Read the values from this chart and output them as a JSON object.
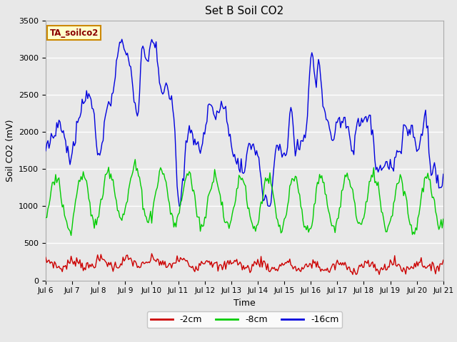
{
  "title": "Set B Soil CO2",
  "xlabel": "Time",
  "ylabel": "Soil CO2 (mV)",
  "xlim": [
    0,
    360
  ],
  "ylim": [
    0,
    3500
  ],
  "yticks": [
    0,
    500,
    1000,
    1500,
    2000,
    2500,
    3000,
    3500
  ],
  "xtick_positions": [
    0,
    24,
    48,
    72,
    96,
    120,
    144,
    168,
    192,
    216,
    240,
    264,
    288,
    312,
    336,
    360
  ],
  "xtick_labels": [
    "Jul 6",
    "Jul 7",
    "Jul 8",
    "Jul 9",
    "Jul 10",
    "Jul 11",
    "Jul 12",
    "Jul 13",
    "Jul 14",
    "Jul 15",
    "Jul 16",
    "Jul 17",
    "Jul 18",
    "Jul 19",
    "Jul 20",
    "Jul 21"
  ],
  "legend_labels": [
    "-2cm",
    "-8cm",
    "-16cm"
  ],
  "line_colors": [
    "#cc0000",
    "#00cc00",
    "#0000dd"
  ],
  "annotation_text": "TA_soilco2",
  "annotation_bg": "#ffffcc",
  "annotation_border": "#cc8800",
  "bg_color": "#e8e8e8",
  "plot_bg": "#e8e8e8",
  "grid_color": "#ffffff",
  "title_fontsize": 11
}
